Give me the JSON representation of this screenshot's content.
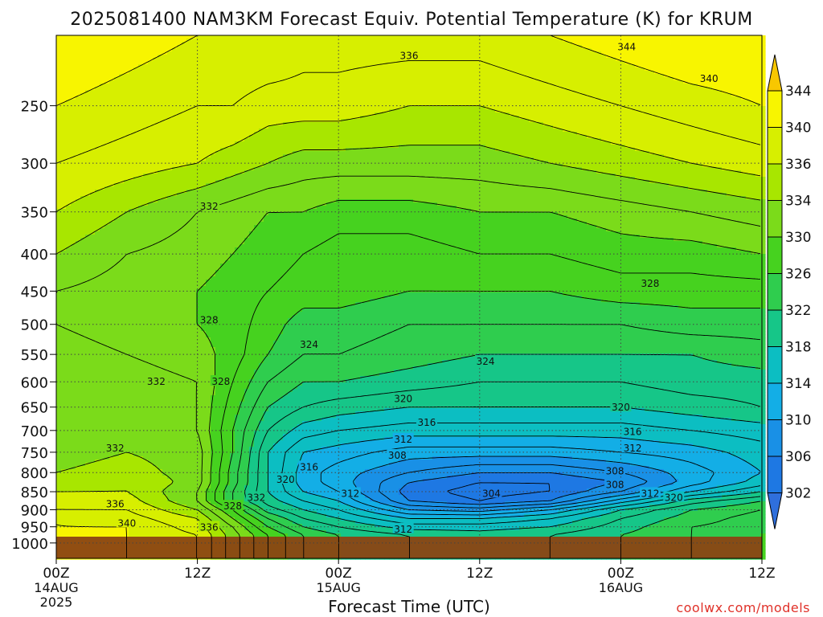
{
  "title": "2025081400 NAM3KM Forecast Equiv. Potential Temperature (K) for KRUM",
  "watermark": "coolwx.com/models",
  "chart_data": {
    "type": "heatmap",
    "title": "2025081400 NAM3KM Forecast Equiv. Potential Temperature (K) for KRUM",
    "xlabel": "Forecast Time (UTC)",
    "ylabel": "",
    "x_range_hours": [
      0,
      60
    ],
    "y_range_hpa": [
      200,
      1050
    ],
    "y_scale": "log",
    "y_inverted": true,
    "x_ticks": [
      {
        "hour": 0,
        "label": "00Z",
        "sub1": "14AUG",
        "sub2": "2025"
      },
      {
        "hour": 12,
        "label": "12Z",
        "sub1": "",
        "sub2": ""
      },
      {
        "hour": 24,
        "label": "00Z",
        "sub1": "15AUG",
        "sub2": ""
      },
      {
        "hour": 36,
        "label": "12Z",
        "sub1": "",
        "sub2": ""
      },
      {
        "hour": 48,
        "label": "00Z",
        "sub1": "16AUG",
        "sub2": ""
      },
      {
        "hour": 60,
        "label": "12Z",
        "sub1": "",
        "sub2": ""
      }
    ],
    "y_ticks": [
      250,
      300,
      350,
      400,
      450,
      500,
      550,
      600,
      650,
      700,
      750,
      800,
      850,
      900,
      950,
      1000
    ],
    "surface_pressure_hpa": 975,
    "colorbar": {
      "labels": [
        344,
        340,
        336,
        334,
        330,
        326,
        322,
        318,
        314,
        310,
        306,
        302
      ],
      "colors": [
        "#f8c700",
        "#f8f500",
        "#d7ef00",
        "#a8e600",
        "#7bdb1a",
        "#46d21f",
        "#2fcd4e",
        "#16c688",
        "#0cbec2",
        "#13aee6",
        "#1990e6",
        "#1e78e3",
        "#2f6fdc"
      ],
      "extend": "both"
    },
    "field_columns_hours": [
      0,
      6,
      12,
      15,
      18,
      21,
      24,
      30,
      36,
      42,
      48,
      54,
      60
    ],
    "field_rows_hpa": [
      200,
      250,
      300,
      350,
      400,
      450,
      500,
      550,
      600,
      650,
      700,
      750,
      800,
      825,
      850,
      875,
      900,
      925,
      950,
      975
    ],
    "field_values": [
      [
        342,
        341,
        340,
        340,
        340,
        339,
        339,
        339,
        339,
        340,
        341,
        342,
        342
      ],
      [
        340,
        339,
        338,
        338,
        337,
        337,
        337,
        336,
        336,
        337,
        338,
        339,
        340
      ],
      [
        338,
        337,
        336,
        335,
        334,
        333,
        333,
        333,
        333,
        334,
        335,
        336,
        337
      ],
      [
        336,
        334,
        332,
        331,
        330,
        330,
        329,
        329,
        330,
        330,
        331,
        332,
        333
      ],
      [
        334,
        332,
        331,
        330,
        329,
        328,
        327,
        327,
        328,
        328,
        329,
        329,
        330
      ],
      [
        332,
        331,
        330,
        329,
        328,
        327,
        327,
        326,
        326,
        326,
        327,
        327,
        327
      ],
      [
        332,
        331,
        330,
        329,
        327,
        325,
        325,
        324,
        324,
        324,
        324,
        325,
        325
      ],
      [
        333,
        332,
        331,
        329,
        326,
        324,
        324,
        323,
        322,
        322,
        322,
        322,
        323
      ],
      [
        333,
        333,
        332,
        328,
        324,
        322,
        322,
        321,
        320,
        320,
        320,
        321,
        321
      ],
      [
        333,
        333,
        332,
        327,
        322,
        320,
        319,
        318,
        318,
        318,
        318,
        319,
        320
      ],
      [
        333,
        333,
        332,
        326,
        320,
        317,
        316,
        315,
        315,
        315,
        315,
        316,
        317
      ],
      [
        333,
        334,
        333,
        326,
        318,
        314,
        313,
        311,
        311,
        311,
        312,
        313,
        315
      ],
      [
        334,
        335,
        333,
        325,
        318,
        313,
        311,
        308,
        306,
        306,
        308,
        311,
        314
      ],
      [
        335,
        336,
        333,
        325,
        318,
        313,
        311,
        306,
        304,
        304,
        306,
        311,
        315
      ],
      [
        336,
        336,
        332,
        324,
        318,
        314,
        312,
        305,
        303,
        304,
        308,
        314,
        318
      ],
      [
        337,
        337,
        332,
        324,
        319,
        316,
        314,
        306,
        304,
        306,
        313,
        319,
        322
      ],
      [
        338,
        338,
        334,
        328,
        321,
        318,
        316,
        310,
        309,
        312,
        318,
        322,
        324
      ],
      [
        340,
        339,
        336,
        330,
        324,
        320,
        318,
        314,
        314,
        316,
        320,
        323,
        325
      ],
      [
        340,
        340,
        337,
        332,
        326,
        322,
        320,
        317,
        317,
        318,
        321,
        324,
        325
      ],
      [
        341,
        340,
        338,
        333,
        328,
        324,
        322,
        320,
        319,
        320,
        322,
        324,
        326
      ]
    ],
    "contour_labels": [
      {
        "text": "344",
        "hour": 48.5,
        "hpa": 207
      },
      {
        "text": "336",
        "hour": 30.0,
        "hpa": 213
      },
      {
        "text": "340",
        "hour": 55.5,
        "hpa": 229
      },
      {
        "text": "332",
        "hour": 13.0,
        "hpa": 343
      },
      {
        "text": "328",
        "hour": 50.5,
        "hpa": 438
      },
      {
        "text": "328",
        "hour": 13.0,
        "hpa": 492
      },
      {
        "text": "324",
        "hour": 21.5,
        "hpa": 532
      },
      {
        "text": "324",
        "hour": 36.5,
        "hpa": 561
      },
      {
        "text": "332",
        "hour": 8.5,
        "hpa": 598
      },
      {
        "text": "328",
        "hour": 14.0,
        "hpa": 598
      },
      {
        "text": "320",
        "hour": 29.5,
        "hpa": 632
      },
      {
        "text": "320",
        "hour": 48.0,
        "hpa": 649
      },
      {
        "text": "316",
        "hour": 31.5,
        "hpa": 681
      },
      {
        "text": "316",
        "hour": 49.0,
        "hpa": 701
      },
      {
        "text": "312",
        "hour": 29.5,
        "hpa": 718
      },
      {
        "text": "312",
        "hour": 49.0,
        "hpa": 739
      },
      {
        "text": "332",
        "hour": 5.0,
        "hpa": 739
      },
      {
        "text": "308",
        "hour": 29.0,
        "hpa": 756
      },
      {
        "text": "316",
        "hour": 21.5,
        "hpa": 784
      },
      {
        "text": "308",
        "hour": 47.5,
        "hpa": 794
      },
      {
        "text": "320",
        "hour": 19.5,
        "hpa": 816
      },
      {
        "text": "308",
        "hour": 47.5,
        "hpa": 830
      },
      {
        "text": "312",
        "hour": 25.0,
        "hpa": 853
      },
      {
        "text": "304",
        "hour": 37.0,
        "hpa": 853
      },
      {
        "text": "312",
        "hour": 50.5,
        "hpa": 853
      },
      {
        "text": "332",
        "hour": 17.0,
        "hpa": 864
      },
      {
        "text": "320",
        "hour": 52.5,
        "hpa": 864
      },
      {
        "text": "336",
        "hour": 5.0,
        "hpa": 882
      },
      {
        "text": "328",
        "hour": 15.0,
        "hpa": 888
      },
      {
        "text": "340",
        "hour": 6.0,
        "hpa": 937
      },
      {
        "text": "336",
        "hour": 13.0,
        "hpa": 949
      },
      {
        "text": "312",
        "hour": 29.5,
        "hpa": 955
      }
    ]
  }
}
